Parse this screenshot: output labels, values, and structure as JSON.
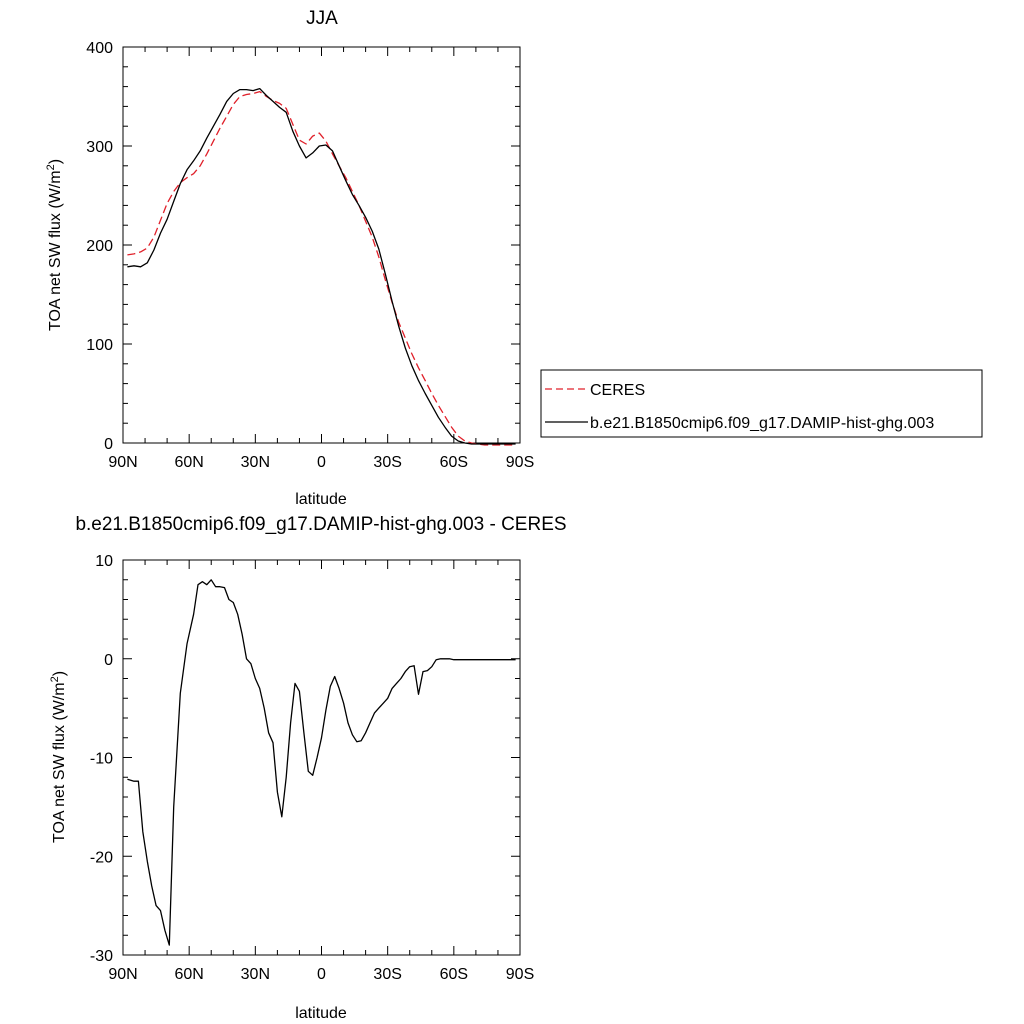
{
  "chart_data": [
    {
      "type": "line",
      "title": "JJA",
      "xlabel": "latitude",
      "ylabel": "TOA net SW flux (W/m",
      "ylabel_sup": "2",
      "ylabel_close": ")",
      "xlim": [
        90,
        -90
      ],
      "ylim": [
        0,
        400
      ],
      "xticks": [
        90,
        60,
        30,
        0,
        -30,
        -60,
        -90
      ],
      "xtick_labels": [
        "90N",
        "60N",
        "30N",
        "0",
        "30S",
        "60S",
        "90S"
      ],
      "yticks": [
        0,
        100,
        200,
        300,
        400
      ],
      "ytick_labels": [
        "0",
        "100",
        "200",
        "300",
        "400"
      ],
      "grid": false,
      "legend_position": "right, outside plot",
      "series": [
        {
          "name": "CERES",
          "color": "#e0202a",
          "style": "dashed",
          "x": [
            88,
            85,
            82,
            79,
            76,
            73,
            70,
            67,
            64,
            61,
            58,
            55,
            52,
            49,
            46,
            43,
            40,
            37,
            34,
            31,
            28,
            25,
            22,
            19,
            16,
            13,
            10,
            7,
            4,
            1,
            -2,
            -5,
            -8,
            -11,
            -14,
            -17,
            -20,
            -23,
            -26,
            -29,
            -32,
            -35,
            -38,
            -41,
            -44,
            -47,
            -50,
            -53,
            -56,
            -59,
            -62,
            -65,
            -68,
            -71,
            -74,
            -77,
            -80,
            -83,
            -86,
            -88
          ],
          "values": [
            190,
            191,
            193,
            197,
            208,
            225,
            242,
            254,
            263,
            268,
            272,
            280,
            292,
            305,
            318,
            330,
            342,
            350,
            352,
            353,
            355,
            350,
            346,
            343,
            338,
            322,
            306,
            302,
            310,
            313,
            305,
            292,
            280,
            268,
            254,
            240,
            224,
            208,
            188,
            164,
            142,
            122,
            106,
            90,
            76,
            63,
            50,
            38,
            27,
            16,
            7,
            2,
            0,
            -1,
            -2,
            -2,
            -2,
            -2,
            -2,
            -2
          ]
        },
        {
          "name": "b.e21.B1850cmip6.f09_g17.DAMIP-hist-ghg.003",
          "color": "#000000",
          "style": "solid",
          "x": [
            88,
            85,
            82,
            79,
            76,
            73,
            70,
            67,
            64,
            61,
            58,
            55,
            52,
            49,
            46,
            43,
            40,
            37,
            34,
            31,
            28,
            25,
            22,
            19,
            16,
            13,
            10,
            7,
            4,
            1,
            -2,
            -5,
            -8,
            -11,
            -14,
            -17,
            -20,
            -23,
            -26,
            -29,
            -32,
            -35,
            -38,
            -41,
            -44,
            -47,
            -50,
            -53,
            -56,
            -59,
            -62,
            -65,
            -68,
            -71,
            -74,
            -77,
            -80,
            -83,
            -86,
            -88
          ],
          "values": [
            178,
            179,
            178,
            182,
            195,
            212,
            226,
            244,
            262,
            276,
            285,
            295,
            308,
            320,
            332,
            345,
            353,
            357,
            357,
            356,
            358,
            351,
            345,
            339,
            334,
            315,
            300,
            288,
            293,
            300,
            301,
            295,
            280,
            265,
            251,
            240,
            228,
            214,
            196,
            170,
            143,
            118,
            96,
            78,
            63,
            50,
            38,
            26,
            16,
            7,
            2,
            0,
            -1,
            -1,
            -1,
            -1,
            -1,
            -1,
            -1,
            -1
          ]
        }
      ]
    },
    {
      "type": "line",
      "title": "b.e21.B1850cmip6.f09_g17.DAMIP-hist-ghg.003 - CERES",
      "xlabel": "latitude",
      "ylabel": "TOA net SW flux (W/m",
      "ylabel_sup": "2",
      "ylabel_close": ")",
      "xlim": [
        90,
        -90
      ],
      "ylim": [
        -30,
        10
      ],
      "xticks": [
        90,
        60,
        30,
        0,
        -30,
        -60,
        -90
      ],
      "xtick_labels": [
        "90N",
        "60N",
        "30N",
        "0",
        "30S",
        "60S",
        "90S"
      ],
      "yticks": [
        10,
        0,
        -10,
        -20,
        -30
      ],
      "ytick_labels": [
        "10",
        "0",
        "-10",
        "-20",
        "-30"
      ],
      "grid": false,
      "series": [
        {
          "color": "#000000",
          "style": "solid",
          "x": [
            88,
            85,
            83,
            81,
            79,
            77,
            75,
            73,
            71,
            69,
            67,
            64,
            61,
            58,
            56,
            54,
            52,
            50,
            48,
            46,
            44,
            42,
            40,
            38,
            36,
            34,
            32,
            30,
            28,
            26,
            24,
            22,
            20,
            18,
            16,
            14,
            12,
            10,
            8,
            6,
            4,
            2,
            0,
            -2,
            -4,
            -6,
            -8,
            -10,
            -12,
            -14,
            -16,
            -18,
            -20,
            -22,
            -24,
            -26,
            -28,
            -30,
            -32,
            -34,
            -36,
            -38,
            -40,
            -42,
            -44,
            -46,
            -48,
            -50,
            -52,
            -54,
            -56,
            -58,
            -60,
            -62,
            -64,
            -66,
            -68,
            -70,
            -72,
            -74,
            -76,
            -78,
            -80,
            -82,
            -84,
            -86,
            -88
          ],
          "values": [
            -12.2,
            -12.4,
            -12.4,
            -17.5,
            -20.5,
            -23,
            -25,
            -25.5,
            -27.5,
            -29,
            -15,
            -3.5,
            1.5,
            4.5,
            7.5,
            7.8,
            7.5,
            8,
            7.3,
            7.3,
            7.2,
            6,
            5.7,
            4.5,
            2.5,
            0,
            -0.5,
            -2,
            -3,
            -5,
            -7.5,
            -8.5,
            -13.5,
            -16,
            -12,
            -6.5,
            -2.5,
            -3.3,
            -7.5,
            -11.4,
            -11.8,
            -10,
            -8,
            -5.2,
            -2.8,
            -1.8,
            -3,
            -4.5,
            -6.5,
            -7.7,
            -8.4,
            -8.3,
            -7.5,
            -6.5,
            -5.5,
            -5,
            -4.5,
            -4,
            -3,
            -2.5,
            -2,
            -1.3,
            -0.8,
            -0.7,
            -3.6,
            -1.3,
            -1.2,
            -0.8,
            -0.1,
            0,
            0,
            0,
            -0.1,
            -0.1,
            -0.1,
            -0.1,
            -0.1,
            -0.1,
            -0.1,
            -0.1,
            -0.1,
            -0.1,
            -0.1,
            -0.1,
            -0.1,
            -0.1,
            -0.1
          ]
        }
      ]
    }
  ]
}
